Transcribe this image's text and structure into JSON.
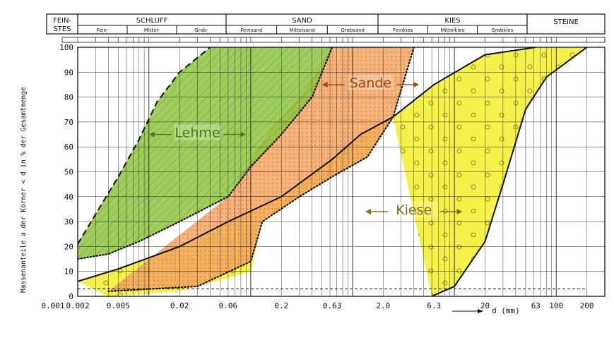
{
  "header": {
    "fractions": [
      {
        "name": "FEIN-\nSTES",
        "subs": []
      },
      {
        "name": "SCHLUFF",
        "subs": [
          "Fein-",
          "Mittel-",
          "Grob-"
        ]
      },
      {
        "name": "SAND",
        "subs": [
          "Feinsand",
          "Mittelsand",
          "Grobsand"
        ]
      },
      {
        "name": "KIES",
        "subs": [
          "Feinkies",
          "Mittelkies",
          "Grobkies"
        ]
      },
      {
        "name": "STEINE",
        "subs": []
      }
    ]
  },
  "chart_data": {
    "type": "area",
    "xscale": "log",
    "xlim": [
      0.001,
      300
    ],
    "ylim": [
      0,
      100
    ],
    "xlabel": "d (mm)",
    "ylabel": "Massenanteile a der Körner < d in % der Gesamtmenge",
    "x_tick_labels": [
      "0.001",
      "0.002",
      "0.005",
      "0.02",
      "0.06",
      "0.2",
      "0.63",
      "2.0",
      "6.3",
      "20",
      "63",
      "100",
      "200"
    ],
    "x_tick_values": [
      0.001,
      0.002,
      0.005,
      0.02,
      0.06,
      0.2,
      0.63,
      2.0,
      6.3,
      20,
      63,
      100,
      200
    ],
    "y_tick_labels": [
      "0",
      "10",
      "20",
      "30",
      "40",
      "50",
      "60",
      "70",
      "80",
      "90",
      "100"
    ],
    "grid": true,
    "regions": [
      {
        "name": "Lehme",
        "color": "#8ec63f",
        "upper": [
          [
            0.002,
            21
          ],
          [
            0.003,
            33
          ],
          [
            0.005,
            48
          ],
          [
            0.008,
            63
          ],
          [
            0.012,
            78
          ],
          [
            0.02,
            90
          ],
          [
            0.04,
            100
          ]
        ],
        "lower": [
          [
            0.002,
            15
          ],
          [
            0.004,
            17
          ],
          [
            0.008,
            22
          ],
          [
            0.02,
            30
          ],
          [
            0.06,
            40
          ],
          [
            0.1,
            52
          ],
          [
            0.2,
            65
          ],
          [
            0.4,
            80
          ],
          [
            0.63,
            100
          ]
        ]
      },
      {
        "name": "Sande",
        "color": "#f4a460",
        "upper": [
          [
            0.06,
            40
          ],
          [
            0.15,
            66
          ],
          [
            0.3,
            80
          ],
          [
            0.63,
            100
          ],
          [
            4.0,
            100
          ]
        ],
        "lower": [
          [
            0.004,
            2
          ],
          [
            0.03,
            4
          ],
          [
            0.1,
            14
          ],
          [
            0.13,
            30
          ],
          [
            0.3,
            40
          ],
          [
            0.63,
            48
          ],
          [
            1.4,
            56
          ],
          [
            2.5,
            72
          ],
          [
            4.0,
            100
          ]
        ]
      },
      {
        "name": "Kiese",
        "color": "#f2ef2a",
        "upper": [
          [
            0.002,
            6
          ],
          [
            0.005,
            11
          ],
          [
            0.02,
            20
          ],
          [
            0.06,
            30
          ],
          [
            0.2,
            40
          ],
          [
            0.63,
            55
          ],
          [
            1.2,
            65
          ],
          [
            2.5,
            72
          ],
          [
            6.3,
            85
          ],
          [
            20,
            97
          ],
          [
            63,
            100
          ],
          [
            200,
            100
          ]
        ],
        "lower": [
          [
            0.004,
            0
          ],
          [
            0.02,
            2
          ],
          [
            0.1,
            10
          ],
          [
            0.13,
            30
          ],
          [
            0.3,
            40
          ],
          [
            0.63,
            48
          ],
          [
            1.4,
            56
          ],
          [
            2.5,
            72
          ],
          [
            6.0,
            0
          ],
          [
            10,
            4
          ],
          [
            20,
            22
          ],
          [
            30,
            45
          ],
          [
            50,
            75
          ],
          [
            80,
            88
          ],
          [
            200,
            100
          ]
        ]
      }
    ],
    "region_labels": [
      {
        "text": "Lehme",
        "x": 0.03,
        "y": 65
      },
      {
        "text": "Sande",
        "x": 1.5,
        "y": 85
      },
      {
        "text": "Kiese",
        "x": 4.0,
        "y": 34
      }
    ],
    "curves": [
      {
        "name": "dotted-boundary-lehme",
        "style": "dotted",
        "points": [
          [
            0.002,
            15
          ],
          [
            0.004,
            17
          ],
          [
            0.008,
            22
          ],
          [
            0.02,
            30
          ],
          [
            0.06,
            40
          ],
          [
            0.1,
            52
          ],
          [
            0.2,
            65
          ],
          [
            0.4,
            80
          ],
          [
            0.63,
            100
          ]
        ]
      },
      {
        "name": "dashed-boundary-lehme",
        "style": "dashed",
        "points": [
          [
            0.002,
            21
          ],
          [
            0.003,
            33
          ],
          [
            0.005,
            48
          ],
          [
            0.008,
            63
          ],
          [
            0.012,
            78
          ],
          [
            0.02,
            90
          ],
          [
            0.04,
            100
          ]
        ]
      },
      {
        "name": "solid-curve-main",
        "style": "solid",
        "points": [
          [
            0.002,
            6
          ],
          [
            0.005,
            11
          ],
          [
            0.02,
            20
          ],
          [
            0.06,
            30
          ],
          [
            0.2,
            40
          ],
          [
            0.63,
            55
          ],
          [
            1.2,
            65
          ],
          [
            2.5,
            72
          ],
          [
            6.3,
            85
          ],
          [
            20,
            97
          ],
          [
            63,
            100
          ]
        ]
      },
      {
        "name": "solid-curve-right",
        "style": "solid",
        "points": [
          [
            6.0,
            0
          ],
          [
            10,
            4
          ],
          [
            20,
            22
          ],
          [
            30,
            45
          ],
          [
            50,
            75
          ],
          [
            80,
            88
          ],
          [
            200,
            100
          ]
        ]
      },
      {
        "name": "dotted-boundary-sande",
        "style": "dotted",
        "points": [
          [
            0.004,
            2
          ],
          [
            0.03,
            4
          ],
          [
            0.1,
            14
          ],
          [
            0.13,
            30
          ],
          [
            0.3,
            40
          ],
          [
            0.63,
            48
          ],
          [
            1.4,
            56
          ],
          [
            2.5,
            72
          ],
          [
            4.0,
            100
          ]
        ]
      },
      {
        "name": "dashed-horizontal",
        "style": "dashed",
        "points": [
          [
            0.002,
            3
          ],
          [
            200,
            3
          ]
        ]
      }
    ],
    "colors": {
      "lehme": "#8ec63f",
      "sande": "#f4a460",
      "kiese": "#f2ef2a",
      "overlap_orange": "#f0a030",
      "ink": "#111111"
    }
  }
}
